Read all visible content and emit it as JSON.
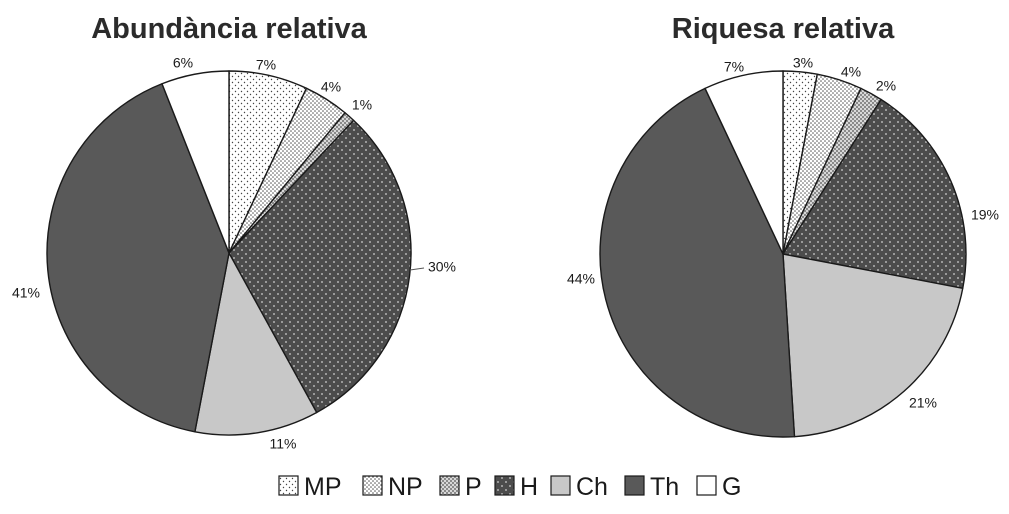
{
  "legend": [
    {
      "key": "MP",
      "pattern": "pat-mp"
    },
    {
      "key": "NP",
      "pattern": "pat-np"
    },
    {
      "key": "P",
      "pattern": "pat-p"
    },
    {
      "key": "H",
      "pattern": "pat-h"
    },
    {
      "key": "Ch",
      "fill": "#c8c8c8"
    },
    {
      "key": "Th",
      "fill": "#595959"
    },
    {
      "key": "G",
      "fill": "#ffffff"
    }
  ],
  "chart_data": [
    {
      "type": "pie",
      "title": "Abundància relativa",
      "categories": [
        "MP",
        "NP",
        "P",
        "H",
        "Ch",
        "Th",
        "G"
      ],
      "values": [
        7,
        4,
        1,
        30,
        11,
        41,
        6
      ],
      "labels": [
        "7%",
        "4%",
        "1%",
        "30%",
        "11%",
        "41%",
        "6%"
      ],
      "start": "top",
      "direction": "clockwise"
    },
    {
      "type": "pie",
      "title": "Riquesa relativa",
      "categories": [
        "MP",
        "NP",
        "P",
        "H",
        "Ch",
        "Th",
        "G"
      ],
      "values": [
        3,
        4,
        2,
        19,
        21,
        44,
        7
      ],
      "labels": [
        "3%",
        "4%",
        "2%",
        "19%",
        "21%",
        "44%",
        "7%"
      ],
      "start": "top",
      "direction": "clockwise"
    }
  ]
}
